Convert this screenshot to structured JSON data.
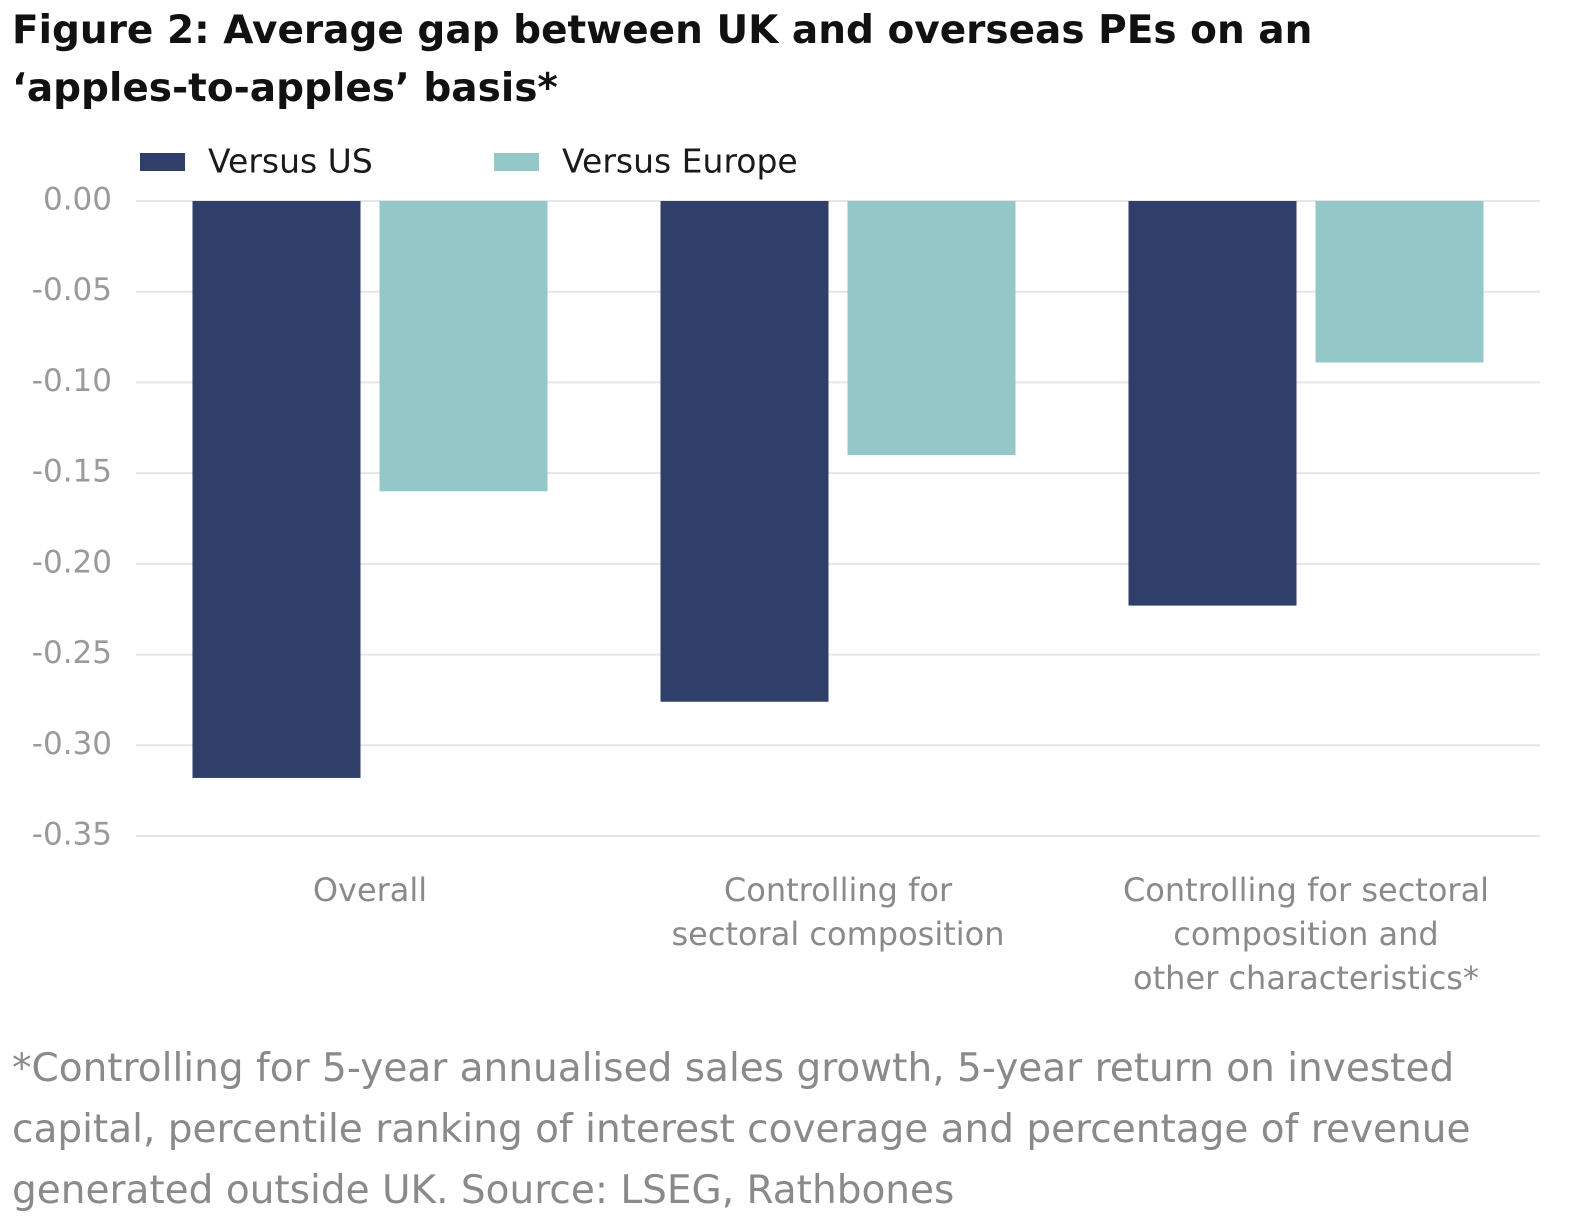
{
  "chart_data": {
    "type": "bar",
    "title": "Figure 2: Average gap between UK and overseas PEs on an\n‘apples-to-apples’ basis*",
    "categories": [
      "Overall",
      "Controlling for\nsectoral composition",
      "Controlling for sectoral\ncomposition and\nother characteristics*"
    ],
    "series": [
      {
        "name": "Versus US",
        "color": "#2f3f69",
        "values": [
          -0.318,
          -0.276,
          -0.223
        ]
      },
      {
        "name": "Versus Europe",
        "color": "#94c8c8",
        "values": [
          -0.16,
          -0.14,
          -0.089
        ]
      }
    ],
    "ylim": [
      -0.35,
      0
    ],
    "yticks": [
      {
        "value": 0,
        "label": "0.00"
      },
      {
        "value": -0.05,
        "label": "-0.05"
      },
      {
        "value": -0.1,
        "label": "-0.10"
      },
      {
        "value": -0.15,
        "label": "-0.15"
      },
      {
        "value": -0.2,
        "label": "-0.20"
      },
      {
        "value": -0.25,
        "label": "-0.25"
      },
      {
        "value": -0.3,
        "label": "-0.30"
      },
      {
        "value": -0.35,
        "label": "-0.35"
      }
    ],
    "grid": true,
    "footnote": "*Controlling for 5-year annualised sales growth, 5-year return on invested\ncapital, percentile ranking of interest coverage and percentage of revenue\ngenerated outside UK. Source: LSEG, Rathbones"
  }
}
